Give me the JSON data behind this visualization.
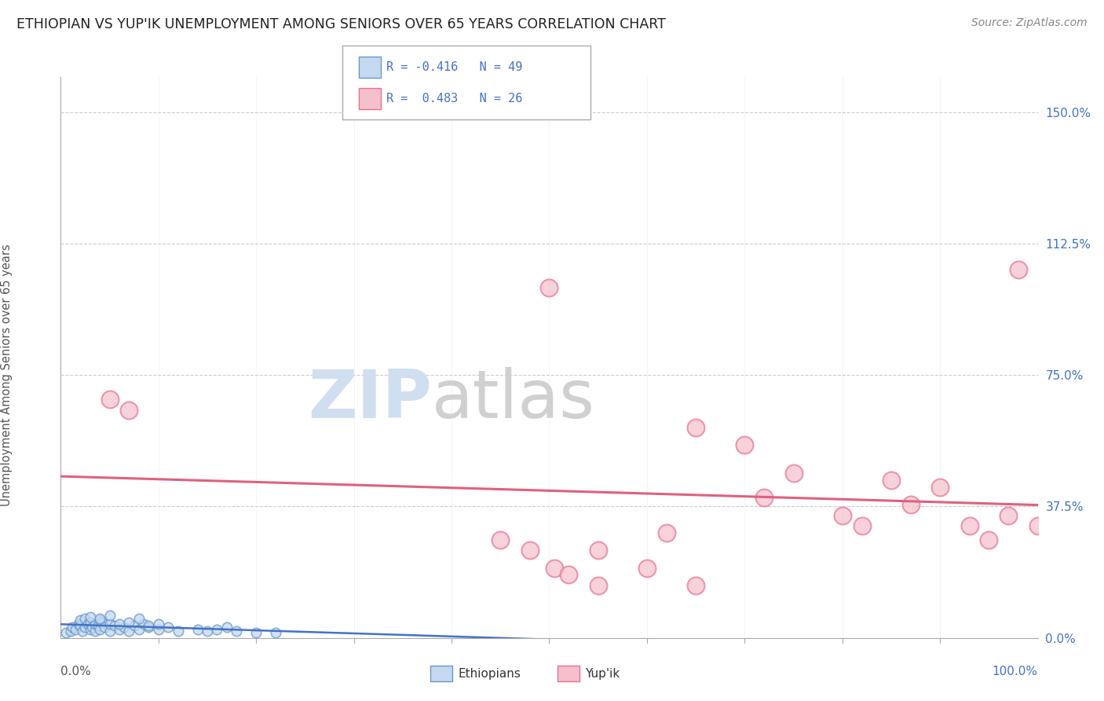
{
  "title": "ETHIOPIAN VS YUP'IK UNEMPLOYMENT AMONG SENIORS OVER 65 YEARS CORRELATION CHART",
  "source": "Source: ZipAtlas.com",
  "ylabel": "Unemployment Among Seniors over 65 years",
  "xlim": [
    0,
    100
  ],
  "ylim": [
    0,
    160
  ],
  "ytick_vals": [
    0,
    37.5,
    75.0,
    112.5,
    150.0
  ],
  "ytick_labels": [
    "0.0%",
    "37.5%",
    "75.0%",
    "112.5%",
    "150.0%"
  ],
  "blue_face": "#c5d8f0",
  "blue_edge": "#6699cc",
  "blue_line": "#4472c4",
  "pink_face": "#f5c0cc",
  "pink_edge": "#e87090",
  "pink_line": "#e06080",
  "grid_color": "#cccccc",
  "background": "#ffffff",
  "watermark_zip_color": "#d0dff0",
  "watermark_atlas_color": "#d0d0d0",
  "eth_x": [
    0.5,
    1.0,
    1.2,
    1.5,
    1.8,
    2.0,
    2.0,
    2.2,
    2.5,
    2.5,
    2.8,
    3.0,
    3.0,
    3.2,
    3.5,
    3.5,
    3.8,
    4.0,
    4.0,
    4.2,
    4.5,
    5.0,
    5.0,
    5.5,
    6.0,
    6.5,
    7.0,
    7.5,
    8.0,
    8.5,
    9.0,
    10.0,
    11.0,
    12.0,
    14.0,
    15.0,
    16.0,
    17.0,
    18.0,
    20.0,
    22.0,
    3.0,
    4.0,
    5.0,
    6.0,
    7.0,
    8.0,
    9.0,
    10.0
  ],
  "eth_y": [
    1.5,
    2.0,
    3.0,
    2.5,
    4.0,
    3.5,
    5.0,
    2.0,
    3.0,
    5.5,
    4.0,
    2.5,
    4.5,
    3.0,
    2.0,
    4.0,
    3.5,
    2.5,
    5.0,
    4.5,
    3.0,
    2.0,
    4.0,
    3.5,
    2.5,
    3.0,
    2.0,
    3.5,
    2.5,
    4.0,
    3.0,
    2.5,
    3.0,
    2.0,
    2.5,
    2.0,
    2.5,
    3.0,
    2.0,
    1.5,
    1.5,
    6.0,
    5.5,
    6.5,
    4.0,
    4.5,
    5.5,
    3.5,
    4.0
  ],
  "yup_x": [
    5.0,
    7.0,
    50.0,
    50.5,
    55.0,
    62.0,
    65.0,
    70.0,
    72.0,
    75.0,
    80.0,
    82.0,
    85.0,
    87.0,
    90.0,
    93.0,
    95.0,
    97.0,
    98.0,
    100.0,
    45.0,
    48.0,
    52.0,
    55.0,
    60.0,
    65.0
  ],
  "yup_y": [
    68.0,
    65.0,
    100.0,
    20.0,
    25.0,
    30.0,
    60.0,
    55.0,
    40.0,
    47.0,
    35.0,
    32.0,
    45.0,
    38.0,
    43.0,
    32.0,
    28.0,
    35.0,
    105.0,
    32.0,
    28.0,
    25.0,
    18.0,
    15.0,
    20.0,
    15.0
  ],
  "eth_trendline": [
    -0.05,
    18.0
  ],
  "yup_trendline": [
    0.45,
    18.0
  ],
  "legend_r_eth": "R = -0.416",
  "legend_n_eth": "N = 49",
  "legend_r_yup": "R =  0.483",
  "legend_n_yup": "N = 26",
  "label_eth": "Ethiopians",
  "label_yup": "Yup'ik"
}
